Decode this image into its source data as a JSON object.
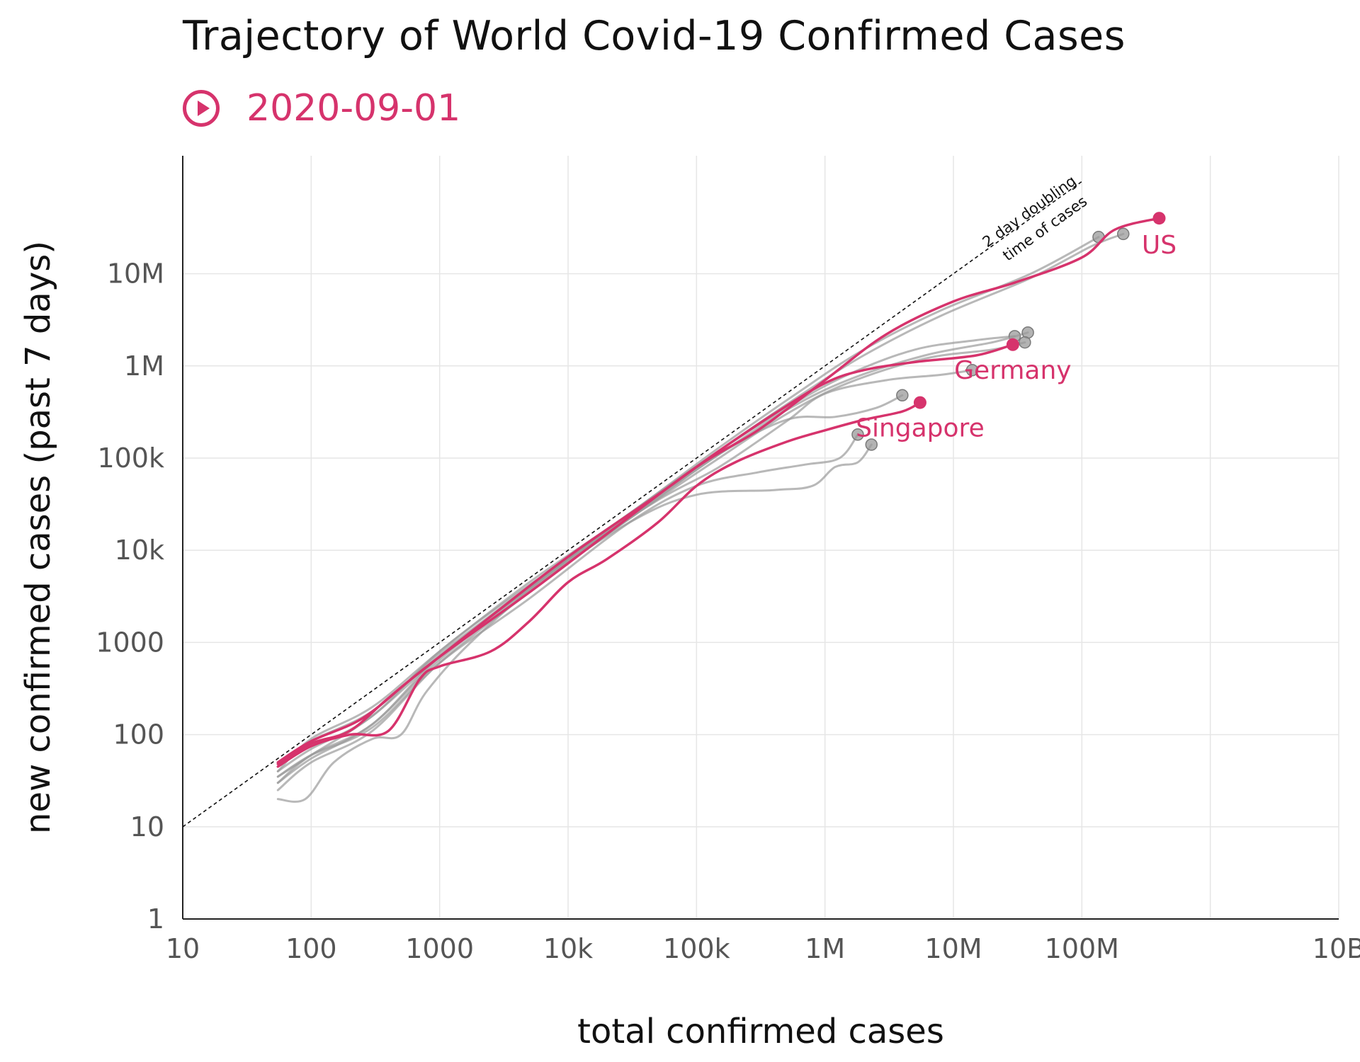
{
  "header": {
    "title": "Trajectory of World Covid-19 Confirmed Cases",
    "date": "2020-09-01",
    "play_icon": "play-circle-icon"
  },
  "colors": {
    "highlight": "#d6336c",
    "background_series": "#9a9a9a",
    "grid": "#e6e6e6",
    "axis": "#222222"
  },
  "chart_data": {
    "type": "line",
    "xlabel": "total confirmed cases",
    "ylabel": "new confirmed cases (past 7 days)",
    "xscale": "log",
    "yscale": "log",
    "xlim": [
      10,
      10000000000
    ],
    "ylim": [
      1,
      200000000
    ],
    "grid": true,
    "x_ticks": [
      10,
      100,
      1000,
      10000,
      100000,
      1000000,
      10000000,
      100000000,
      1000000000,
      10000000000
    ],
    "x_tick_labels": [
      "10",
      "100",
      "1000",
      "10k",
      "100k",
      "1M",
      "10M",
      "100M",
      "",
      "10B"
    ],
    "y_ticks": [
      1,
      10,
      100,
      1000,
      10000,
      100000,
      1000000,
      10000000
    ],
    "y_tick_labels": [
      "1",
      "10",
      "100",
      "1000",
      "10k",
      "100k",
      "1M",
      "10M"
    ],
    "reference_line": {
      "label_line1": "2 day doubling",
      "label_line2": "time of cases",
      "points": [
        [
          10,
          10
        ],
        [
          100000000,
          100000000
        ]
      ]
    },
    "series": [
      {
        "name": "US",
        "highlight": true,
        "points": [
          [
            55,
            48
          ],
          [
            100,
            80
          ],
          [
            200,
            110
          ],
          [
            400,
            250
          ],
          [
            1000,
            700
          ],
          [
            5000,
            3500
          ],
          [
            20000,
            15000
          ],
          [
            100000,
            80000
          ],
          [
            300000,
            200000
          ],
          [
            1000000,
            700000
          ],
          [
            3000000,
            2200000
          ],
          [
            10000000,
            5000000
          ],
          [
            30000000,
            8000000
          ],
          [
            100000000,
            15000000
          ],
          [
            180000000,
            30000000
          ],
          [
            400000000,
            40000000
          ]
        ]
      },
      {
        "name": "Germany",
        "highlight": true,
        "points": [
          [
            55,
            50
          ],
          [
            100,
            85
          ],
          [
            250,
            150
          ],
          [
            600,
            400
          ],
          [
            2000,
            1500
          ],
          [
            10000,
            8500
          ],
          [
            50000,
            40000
          ],
          [
            150000,
            120000
          ],
          [
            400000,
            300000
          ],
          [
            1000000,
            650000
          ],
          [
            2000000,
            900000
          ],
          [
            5000000,
            1100000
          ],
          [
            15000000,
            1300000
          ],
          [
            29000000,
            1700000
          ]
        ]
      },
      {
        "name": "Singapore",
        "highlight": true,
        "points": [
          [
            55,
            45
          ],
          [
            100,
            75
          ],
          [
            200,
            100
          ],
          [
            400,
            110
          ],
          [
            700,
            400
          ],
          [
            1000,
            550
          ],
          [
            2500,
            800
          ],
          [
            5000,
            1700
          ],
          [
            10000,
            4500
          ],
          [
            20000,
            8000
          ],
          [
            50000,
            20000
          ],
          [
            100000,
            50000
          ],
          [
            200000,
            90000
          ],
          [
            500000,
            150000
          ],
          [
            1000000,
            200000
          ],
          [
            2000000,
            260000
          ],
          [
            4000000,
            320000
          ],
          [
            5500000,
            400000
          ]
        ]
      },
      {
        "name": "",
        "highlight": false,
        "points": [
          [
            55,
            40
          ],
          [
            100,
            90
          ],
          [
            300,
            200
          ],
          [
            1000,
            800
          ],
          [
            5000,
            4500
          ],
          [
            30000,
            25000
          ],
          [
            150000,
            130000
          ],
          [
            600000,
            500000
          ],
          [
            2000000,
            1500000
          ],
          [
            8000000,
            4000000
          ],
          [
            40000000,
            10000000
          ],
          [
            135000000,
            25000000
          ]
        ]
      },
      {
        "name": "",
        "highlight": false,
        "points": [
          [
            55,
            45
          ],
          [
            100,
            85
          ],
          [
            300,
            180
          ],
          [
            1000,
            750
          ],
          [
            5000,
            4000
          ],
          [
            30000,
            24000
          ],
          [
            150000,
            120000
          ],
          [
            600000,
            450000
          ],
          [
            2000000,
            1300000
          ],
          [
            8000000,
            3500000
          ],
          [
            40000000,
            9000000
          ],
          [
            120000000,
            20000000
          ],
          [
            210000000,
            27000000
          ]
        ]
      },
      {
        "name": "",
        "highlight": false,
        "points": [
          [
            55,
            35
          ],
          [
            100,
            60
          ],
          [
            300,
            160
          ],
          [
            1000,
            700
          ],
          [
            5000,
            4000
          ],
          [
            30000,
            25000
          ],
          [
            150000,
            120000
          ],
          [
            500000,
            350000
          ],
          [
            1500000,
            800000
          ],
          [
            5000000,
            1500000
          ],
          [
            15000000,
            1900000
          ],
          [
            30000000,
            2100000
          ]
        ]
      },
      {
        "name": "",
        "highlight": false,
        "points": [
          [
            55,
            30
          ],
          [
            100,
            55
          ],
          [
            300,
            130
          ],
          [
            1000,
            650
          ],
          [
            5000,
            3800
          ],
          [
            30000,
            23000
          ],
          [
            150000,
            110000
          ],
          [
            500000,
            330000
          ],
          [
            1500000,
            700000
          ],
          [
            6000000,
            1300000
          ],
          [
            20000000,
            1800000
          ],
          [
            38000000,
            2300000
          ]
        ]
      },
      {
        "name": "",
        "highlight": false,
        "points": [
          [
            55,
            25
          ],
          [
            100,
            50
          ],
          [
            300,
            110
          ],
          [
            1000,
            600
          ],
          [
            5000,
            3500
          ],
          [
            30000,
            22000
          ],
          [
            150000,
            100000
          ],
          [
            500000,
            300000
          ],
          [
            1500000,
            650000
          ],
          [
            6000000,
            1200000
          ],
          [
            20000000,
            1500000
          ],
          [
            36000000,
            1800000
          ]
        ]
      },
      {
        "name": "",
        "highlight": false,
        "points": [
          [
            55,
            20
          ],
          [
            90,
            20
          ],
          [
            150,
            50
          ],
          [
            300,
            90
          ],
          [
            500,
            100
          ],
          [
            800,
            300
          ],
          [
            2000,
            1200
          ],
          [
            10000,
            8000
          ],
          [
            50000,
            35000
          ],
          [
            150000,
            80000
          ],
          [
            500000,
            250000
          ],
          [
            1000000,
            500000
          ],
          [
            3000000,
            700000
          ],
          [
            8000000,
            800000
          ],
          [
            14000000,
            900000
          ]
        ]
      },
      {
        "name": "",
        "highlight": false,
        "points": [
          [
            55,
            35
          ],
          [
            100,
            60
          ],
          [
            300,
            120
          ],
          [
            1000,
            600
          ],
          [
            5000,
            3000
          ],
          [
            30000,
            20000
          ],
          [
            100000,
            50000
          ],
          [
            300000,
            70000
          ],
          [
            700000,
            85000
          ],
          [
            1300000,
            100000
          ],
          [
            1800000,
            180000
          ]
        ]
      },
      {
        "name": "",
        "highlight": false,
        "points": [
          [
            55,
            30
          ],
          [
            100,
            60
          ],
          [
            300,
            130
          ],
          [
            1000,
            700
          ],
          [
            5000,
            3800
          ],
          [
            30000,
            20000
          ],
          [
            100000,
            40000
          ],
          [
            400000,
            45000
          ],
          [
            800000,
            50000
          ],
          [
            1200000,
            80000
          ],
          [
            1800000,
            90000
          ],
          [
            2300000,
            140000
          ]
        ]
      },
      {
        "name": "",
        "highlight": false,
        "points": [
          [
            55,
            40
          ],
          [
            100,
            70
          ],
          [
            300,
            160
          ],
          [
            1000,
            800
          ],
          [
            5000,
            4200
          ],
          [
            30000,
            22000
          ],
          [
            150000,
            110000
          ],
          [
            500000,
            260000
          ],
          [
            1200000,
            280000
          ],
          [
            2500000,
            350000
          ],
          [
            4000000,
            480000
          ]
        ]
      }
    ]
  }
}
